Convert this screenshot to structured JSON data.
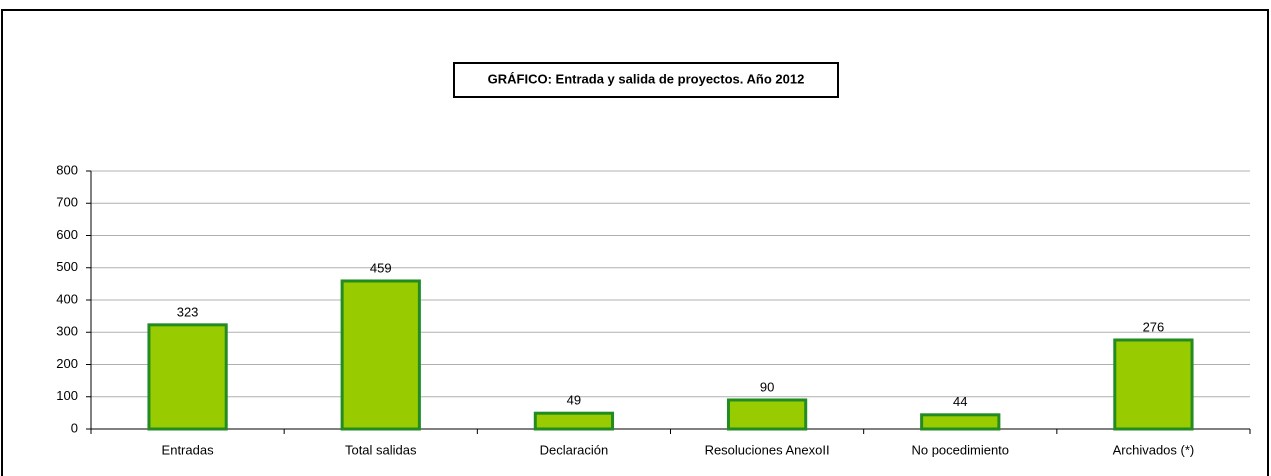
{
  "chart_data": {
    "type": "bar",
    "title": "GRÁFICO: Entrada y salida de proyectos. Año 2012",
    "categories": [
      "Entradas",
      "Total salidas",
      "Declaración",
      "Resoluciones AnexoII",
      "No pocedimiento",
      "Archivados (*)"
    ],
    "values": [
      323,
      459,
      49,
      90,
      44,
      276
    ],
    "color": "#99cc00",
    "edge_color": "#228b22",
    "ylim": [
      0,
      800
    ],
    "yticks": [
      0,
      100,
      200,
      300,
      400,
      500,
      600,
      700,
      800
    ],
    "grid": true
  }
}
